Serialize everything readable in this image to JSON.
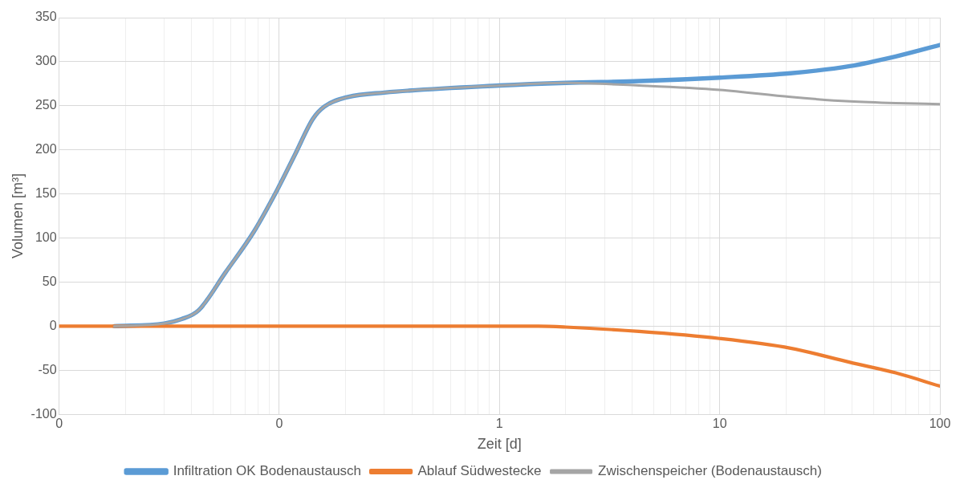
{
  "chart_data": {
    "type": "line",
    "xlabel": "Zeit [d]",
    "ylabel": "Volumen [m³]",
    "log": "x",
    "grid": true,
    "legend": "bottom",
    "marker": "none",
    "line_style": "solid",
    "xlim": [
      0.01,
      100
    ],
    "ylim": [
      -100,
      350
    ],
    "xticks": [
      {
        "value": 0.01,
        "label": "0"
      },
      {
        "value": 0.02,
        "label": null
      },
      {
        "value": 0.03,
        "label": null
      },
      {
        "value": 0.04,
        "label": null
      },
      {
        "value": 0.05,
        "label": null
      },
      {
        "value": 0.06,
        "label": null
      },
      {
        "value": 0.07,
        "label": null
      },
      {
        "value": 0.08,
        "label": null
      },
      {
        "value": 0.09,
        "label": null
      },
      {
        "value": 0.1,
        "label": "0"
      },
      {
        "value": 0.2,
        "label": null
      },
      {
        "value": 0.3,
        "label": null
      },
      {
        "value": 0.4,
        "label": null
      },
      {
        "value": 0.5,
        "label": null
      },
      {
        "value": 0.6,
        "label": null
      },
      {
        "value": 0.7,
        "label": null
      },
      {
        "value": 0.8,
        "label": null
      },
      {
        "value": 0.9,
        "label": null
      },
      1,
      {
        "value": 2,
        "label": null
      },
      {
        "value": 3,
        "label": null
      },
      {
        "value": 4,
        "label": null
      },
      {
        "value": 5,
        "label": null
      },
      {
        "value": 6,
        "label": null
      },
      {
        "value": 7,
        "label": null
      },
      {
        "value": 8,
        "label": null
      },
      {
        "value": 9,
        "label": null
      },
      10,
      {
        "value": 20,
        "label": null
      },
      {
        "value": 30,
        "label": null
      },
      {
        "value": 40,
        "label": null
      },
      {
        "value": 50,
        "label": null
      },
      {
        "value": 60,
        "label": null
      },
      {
        "value": 70,
        "label": null
      },
      {
        "value": 80,
        "label": null
      },
      {
        "value": 90,
        "label": null
      },
      100
    ],
    "yticks": [
      -100,
      -50,
      0,
      50,
      100,
      150,
      200,
      250,
      300,
      350
    ],
    "series": [
      {
        "name": "Infiltration OK Bodenaustausch",
        "color": "#5b9bd5",
        "x": [
          0.0178,
          0.03,
          0.036,
          0.043,
          0.057,
          0.077,
          0.098,
          0.118,
          0.142,
          0.16,
          0.205,
          0.3,
          1,
          2,
          4.3,
          10,
          21,
          39,
          63,
          100
        ],
        "values": [
          0,
          3,
          8,
          18,
          61,
          108,
          155,
          195,
          235,
          249,
          260,
          265,
          273,
          276,
          278,
          282,
          287,
          295,
          306,
          319
        ]
      },
      {
        "name": "Ablauf Südwestecke",
        "color": "#ed7d31",
        "x": [
          0.01,
          0.1,
          1,
          1.5,
          2,
          4.3,
          10,
          21,
          39,
          63,
          100
        ],
        "values": [
          0,
          0,
          0,
          0,
          -1,
          -6,
          -14,
          -25,
          -41,
          -53,
          -68
        ]
      },
      {
        "name": "Zwischenspeicher (Bodenaustausch)",
        "color": "#a5a5a5",
        "x": [
          0.0178,
          0.03,
          0.036,
          0.043,
          0.057,
          0.077,
          0.098,
          0.118,
          0.142,
          0.16,
          0.205,
          0.3,
          1,
          2,
          4.3,
          10,
          21,
          39,
          63,
          100
        ],
        "values": [
          0,
          3,
          8,
          18,
          61,
          108,
          155,
          195,
          235,
          249,
          260,
          265,
          273,
          276,
          273,
          268,
          260,
          255,
          253,
          252
        ]
      }
    ]
  }
}
